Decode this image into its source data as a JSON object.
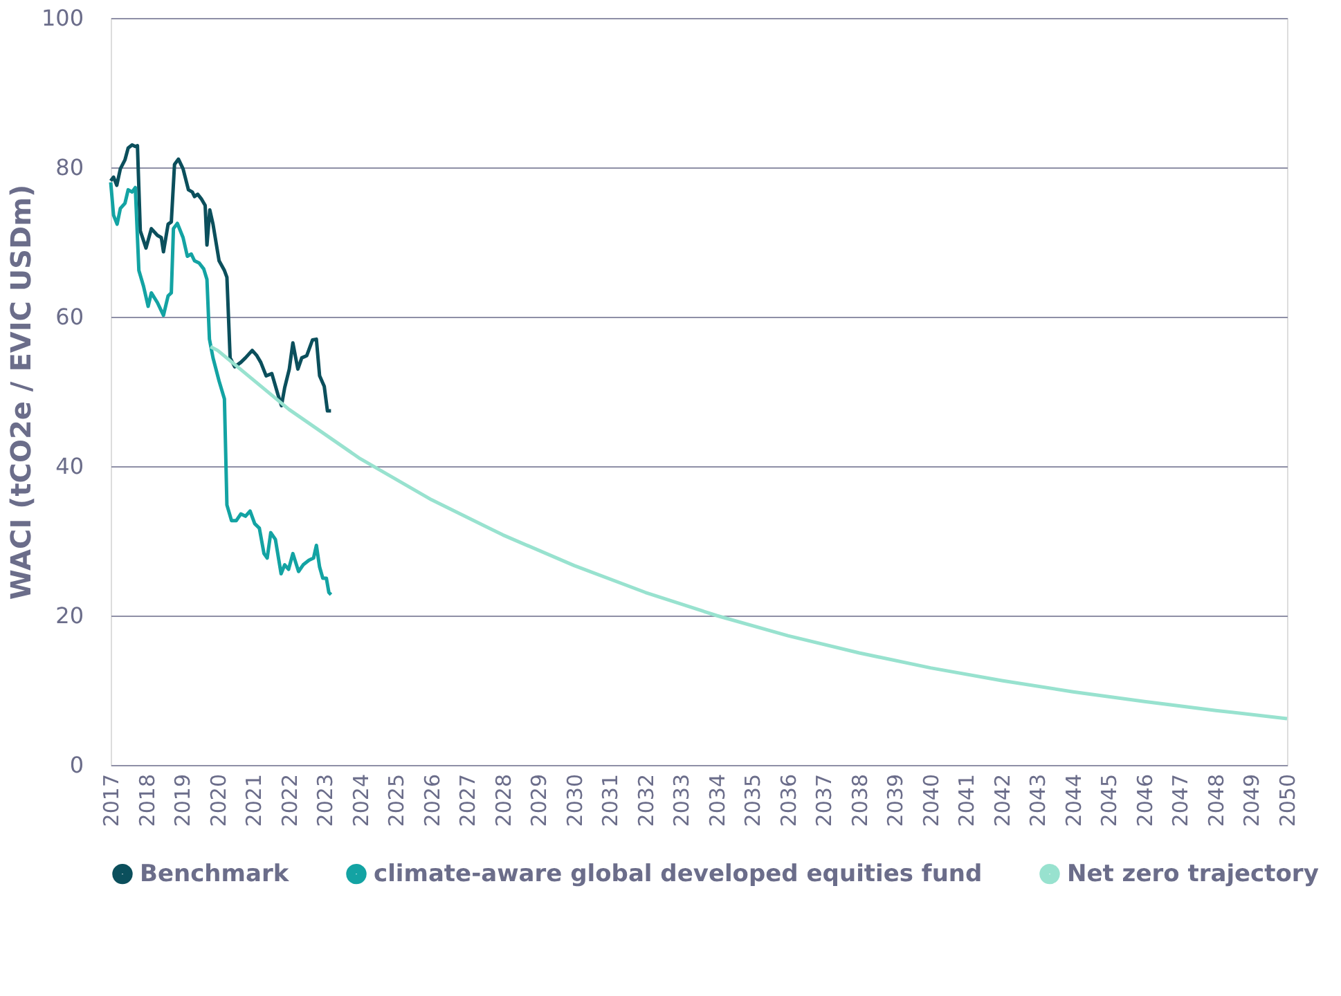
{
  "chart_data": {
    "type": "line",
    "ylabel": "WACI (tCO2e / EVIC USDm)",
    "xlim": [
      2017,
      2050
    ],
    "xticks": [
      2017,
      2018,
      2019,
      2020,
      2021,
      2022,
      2023,
      2024,
      2025,
      2026,
      2027,
      2028,
      2029,
      2030,
      2031,
      2032,
      2033,
      2034,
      2035,
      2036,
      2037,
      2038,
      2039,
      2040,
      2041,
      2042,
      2043,
      2044,
      2045,
      2046,
      2047,
      2048,
      2049,
      2050
    ],
    "ylim": [
      0,
      100
    ],
    "yticks": [
      0,
      20,
      40,
      60,
      80,
      100
    ],
    "grid": "y",
    "legend": "bottom",
    "marker": "none",
    "line_style": "solid",
    "series": [
      {
        "name": "Benchmark",
        "color": "#0b4f5c",
        "x": [
          2017.0,
          2017.08,
          2017.17,
          2017.27,
          2017.4,
          2017.49,
          2017.6,
          2017.69,
          2017.75,
          2017.83,
          2017.99,
          2018.14,
          2018.31,
          2018.42,
          2018.48,
          2018.61,
          2018.7,
          2018.79,
          2018.9,
          2019.03,
          2019.18,
          2019.29,
          2019.35,
          2019.44,
          2019.54,
          2019.65,
          2019.7,
          2019.78,
          2019.87,
          2020.04,
          2020.19,
          2020.26,
          2020.35,
          2020.48,
          2020.65,
          2020.78,
          2020.97,
          2021.1,
          2021.21,
          2021.36,
          2021.52,
          2021.69,
          2021.79,
          2021.88,
          2022.01,
          2022.11,
          2022.25,
          2022.36,
          2022.5,
          2022.66,
          2022.77,
          2022.86,
          2022.99,
          2023.08,
          2023.18
        ],
        "values": [
          78.2,
          78.7,
          77.6,
          79.8,
          81,
          82.6,
          83,
          82.8,
          82.9,
          71.5,
          69.2,
          71.8,
          70.9,
          70.6,
          68.7,
          72.4,
          72.7,
          80.4,
          81.1,
          79.8,
          77,
          76.7,
          76.1,
          76.4,
          75.8,
          74.9,
          69.6,
          74.3,
          72.4,
          67.5,
          66.2,
          65.3,
          54.5,
          53.3,
          53.9,
          54.5,
          55.5,
          54.8,
          53.9,
          52.1,
          52.4,
          49.6,
          48.1,
          50.5,
          53,
          56.5,
          53,
          54.5,
          54.8,
          56.9,
          57,
          52.1,
          50.7,
          47.4,
          47.4
        ]
      },
      {
        "name": "climate-aware global developed equities fund",
        "color": "#13a3a3",
        "x": [
          2017.0,
          2017.08,
          2017.18,
          2017.27,
          2017.4,
          2017.49,
          2017.6,
          2017.69,
          2017.79,
          2017.92,
          2018.05,
          2018.14,
          2018.31,
          2018.48,
          2018.61,
          2018.7,
          2018.76,
          2018.87,
          2019.03,
          2019.15,
          2019.26,
          2019.35,
          2019.48,
          2019.61,
          2019.7,
          2019.77,
          2019.87,
          2020.04,
          2020.19,
          2020.26,
          2020.39,
          2020.52,
          2020.65,
          2020.78,
          2020.91,
          2021.04,
          2021.17,
          2021.3,
          2021.39,
          2021.49,
          2021.62,
          2021.78,
          2021.88,
          2021.99,
          2022.11,
          2022.27,
          2022.4,
          2022.56,
          2022.69,
          2022.77,
          2022.86,
          2022.95,
          2023.05,
          2023.12,
          2023.18
        ],
        "values": [
          78,
          73.6,
          72.4,
          74.5,
          75.2,
          77,
          76.7,
          77.3,
          66.2,
          64.1,
          61.4,
          63.2,
          61.9,
          60.2,
          62.8,
          63.2,
          71.8,
          72.5,
          70.6,
          68.1,
          68.4,
          67.5,
          67.2,
          66.4,
          65,
          57,
          54.5,
          51.4,
          49,
          34.8,
          32.7,
          32.7,
          33.6,
          33.3,
          34,
          32.3,
          31.7,
          28.3,
          27.7,
          31.1,
          30.2,
          25.6,
          26.8,
          26.2,
          28.3,
          25.9,
          26.8,
          27.4,
          27.7,
          29.4,
          26.5,
          25,
          25,
          23.1,
          22.8
        ]
      },
      {
        "name": "Net zero trajectory",
        "color": "#98e2cf",
        "x": [
          2019.8,
          2020,
          2022,
          2024,
          2026,
          2028,
          2030,
          2032,
          2034,
          2036,
          2038,
          2040,
          2042,
          2044,
          2046,
          2048,
          2050
        ],
        "values": [
          56,
          55.5,
          47.6,
          41,
          35.5,
          30.8,
          26.7,
          23.1,
          20,
          17.3,
          15,
          13,
          11.3,
          9.8,
          8.5,
          7.3,
          6.2
        ]
      }
    ]
  }
}
